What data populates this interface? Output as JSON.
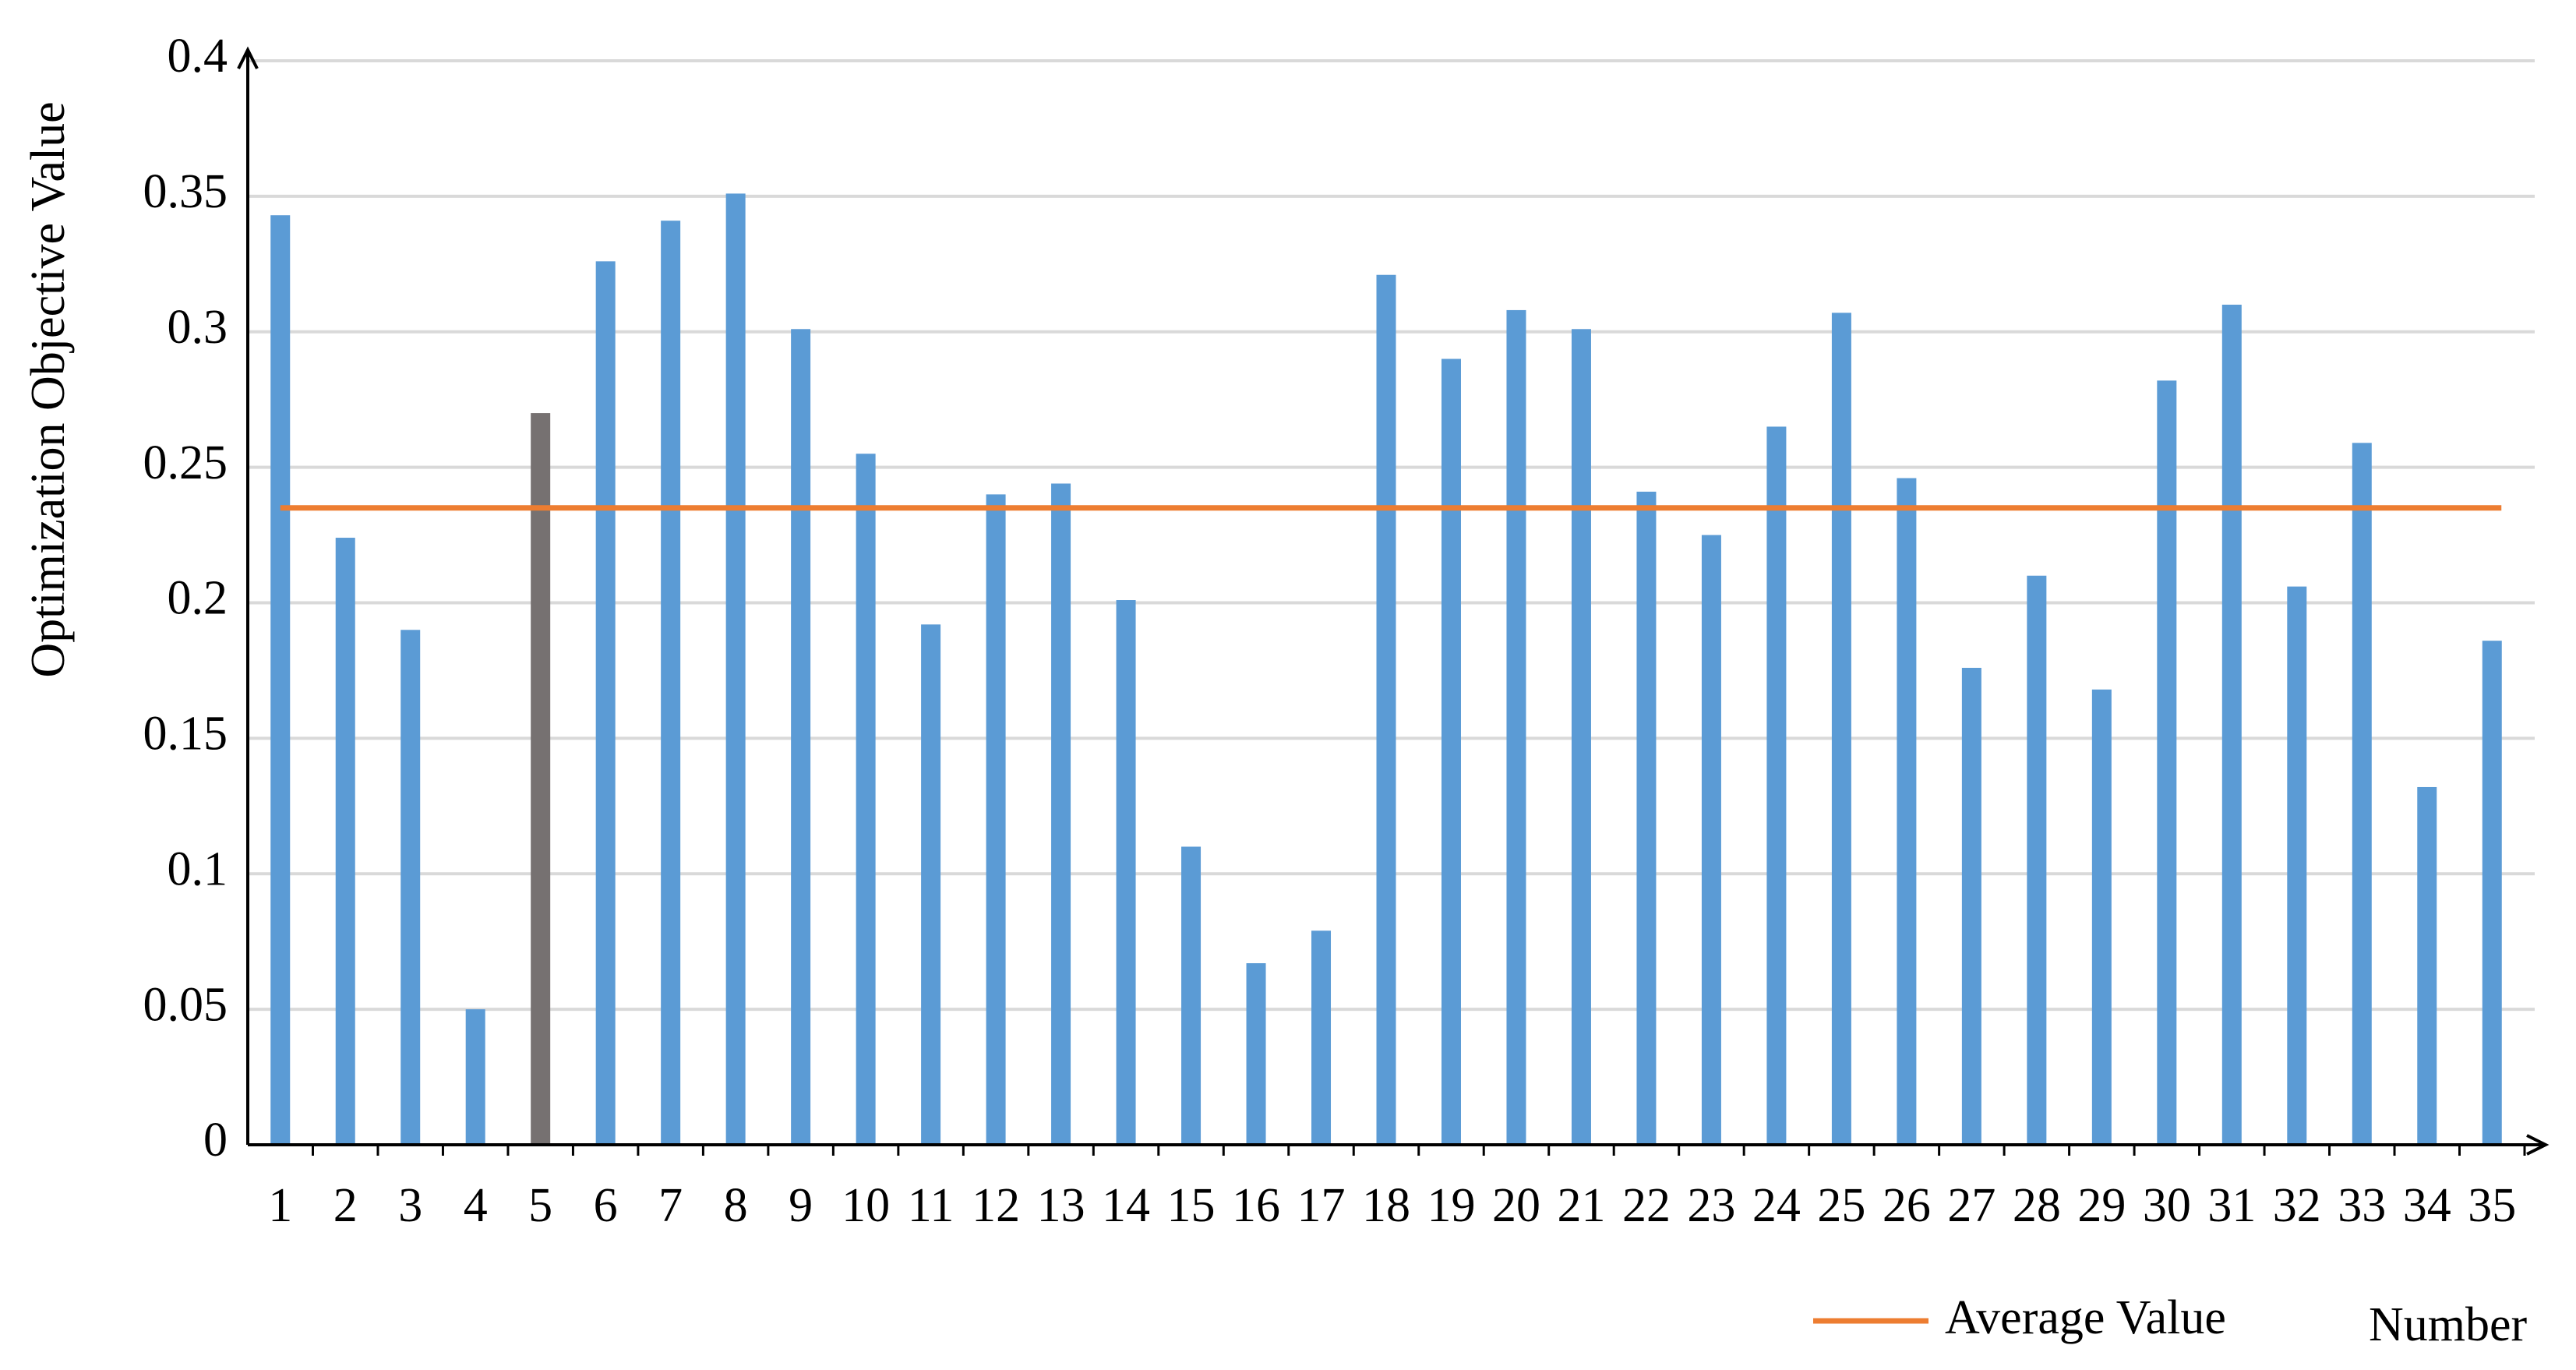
{
  "chart_data": {
    "type": "bar",
    "y_label": "Optimization Objective Value",
    "x_label": "Number",
    "categories": [
      "1",
      "2",
      "3",
      "4",
      "5",
      "6",
      "7",
      "8",
      "9",
      "10",
      "11",
      "12",
      "13",
      "14",
      "15",
      "16",
      "17",
      "18",
      "19",
      "20",
      "21",
      "22",
      "23",
      "24",
      "25",
      "26",
      "27",
      "28",
      "29",
      "30",
      "31",
      "32",
      "33",
      "34",
      "35"
    ],
    "values": [
      0.343,
      0.224,
      0.19,
      0.05,
      0.27,
      0.326,
      0.341,
      0.351,
      0.301,
      0.255,
      0.192,
      0.24,
      0.244,
      0.201,
      0.11,
      0.067,
      0.079,
      0.321,
      0.29,
      0.308,
      0.301,
      0.241,
      0.225,
      0.265,
      0.307,
      0.246,
      0.176,
      0.21,
      0.168,
      0.282,
      0.31,
      0.206,
      0.259,
      0.132,
      0.186
    ],
    "colors": [
      "#5b9bd5",
      "#5b9bd5",
      "#5b9bd5",
      "#5b9bd5",
      "#767171",
      "#5b9bd5",
      "#5b9bd5",
      "#5b9bd5",
      "#5b9bd5",
      "#5b9bd5",
      "#5b9bd5",
      "#5b9bd5",
      "#5b9bd5",
      "#5b9bd5",
      "#5b9bd5",
      "#5b9bd5",
      "#5b9bd5",
      "#5b9bd5",
      "#5b9bd5",
      "#5b9bd5",
      "#5b9bd5",
      "#5b9bd5",
      "#5b9bd5",
      "#5b9bd5",
      "#5b9bd5",
      "#5b9bd5",
      "#5b9bd5",
      "#5b9bd5",
      "#5b9bd5",
      "#5b9bd5",
      "#5b9bd5",
      "#5b9bd5",
      "#5b9bd5",
      "#5b9bd5",
      "#5b9bd5"
    ],
    "average": {
      "name": "Average Value",
      "value": 0.235,
      "color": "#ed7d31"
    },
    "ylim": [
      0,
      0.4
    ],
    "yticks": [
      0,
      0.05,
      0.1,
      0.15,
      0.2,
      0.25,
      0.3,
      0.35,
      0.4
    ],
    "grid": true
  }
}
